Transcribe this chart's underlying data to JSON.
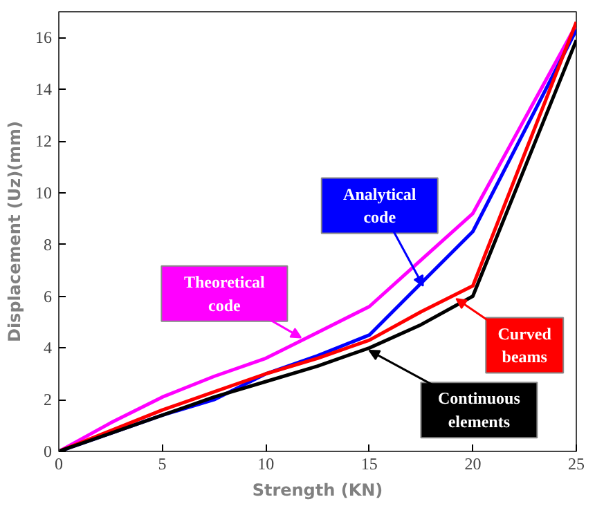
{
  "chart_data": {
    "type": "line",
    "xlabel": "Strength (KN)",
    "ylabel": "Displacement (Uz)(mm)",
    "x": [
      0,
      2.5,
      5,
      7.5,
      10,
      12.5,
      15,
      17.5,
      20,
      25
    ],
    "series": [
      {
        "name": "Theoretical code",
        "color": "#ff00ff",
        "values": [
          0,
          1.1,
          2.1,
          2.9,
          3.6,
          4.6,
          5.6,
          7.4,
          9.2,
          16.5
        ]
      },
      {
        "name": "Analytical code",
        "color": "#0000ff",
        "values": [
          0,
          0.7,
          1.4,
          2.0,
          3.0,
          3.7,
          4.5,
          6.5,
          8.5,
          16.3
        ]
      },
      {
        "name": "Curved beams",
        "color": "#ff0000",
        "values": [
          0,
          0.8,
          1.6,
          2.3,
          3.0,
          3.6,
          4.3,
          5.4,
          6.4,
          16.6
        ]
      },
      {
        "name": "Continuous elements",
        "color": "#000000",
        "values": [
          0,
          0.7,
          1.4,
          2.1,
          2.7,
          3.3,
          4.0,
          4.9,
          6.0,
          15.9
        ]
      }
    ],
    "xlim": [
      0,
      25
    ],
    "ylim": [
      0,
      17
    ],
    "xticks": [
      0,
      5,
      10,
      15,
      20,
      25
    ],
    "yticks": [
      0,
      2,
      4,
      6,
      8,
      10,
      12,
      14,
      16
    ],
    "grid": false,
    "line_style": "solid",
    "marker": "none"
  }
}
